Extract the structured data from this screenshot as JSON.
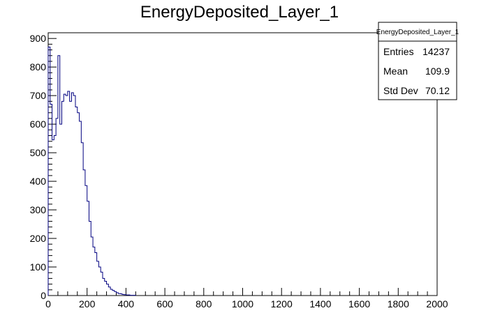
{
  "chart_data": {
    "type": "bar",
    "style": "step-histogram",
    "title": "EnergyDeposited_Layer_1",
    "xlabel": "",
    "ylabel": "",
    "xlim": [
      0,
      2000
    ],
    "ylim": [
      0,
      920
    ],
    "x_ticks": [
      "0",
      "200",
      "400",
      "600",
      "800",
      "1000",
      "1200",
      "1400",
      "1600",
      "1800",
      "2000"
    ],
    "y_ticks": [
      "0",
      "100",
      "200",
      "300",
      "400",
      "500",
      "600",
      "700",
      "800",
      "900"
    ],
    "x_tick_values": [
      0,
      200,
      400,
      600,
      800,
      1000,
      1200,
      1400,
      1600,
      1800,
      2000
    ],
    "y_tick_values": [
      0,
      100,
      200,
      300,
      400,
      500,
      600,
      700,
      800,
      900
    ],
    "bin_width": 10,
    "bin_start": 0,
    "series": [
      {
        "color": "#000080",
        "values": [
          870,
          670,
          545,
          560,
          620,
          840,
          600,
          680,
          705,
          700,
          715,
          680,
          710,
          700,
          660,
          640,
          610,
          535,
          440,
          385,
          330,
          260,
          205,
          170,
          150,
          120,
          100,
          82,
          60,
          50,
          40,
          30,
          22,
          18,
          14,
          10,
          7,
          6,
          4,
          3,
          2,
          2,
          1,
          1,
          1
        ]
      }
    ],
    "stats_box": {
      "title": "EnergyDeposited_Layer_1",
      "rows": [
        {
          "label": "Entries",
          "value": "14237"
        },
        {
          "label": "Mean",
          "value": "109.9"
        },
        {
          "label": "Std Dev",
          "value": "70.12"
        }
      ]
    },
    "grid": false,
    "legend": "none"
  }
}
